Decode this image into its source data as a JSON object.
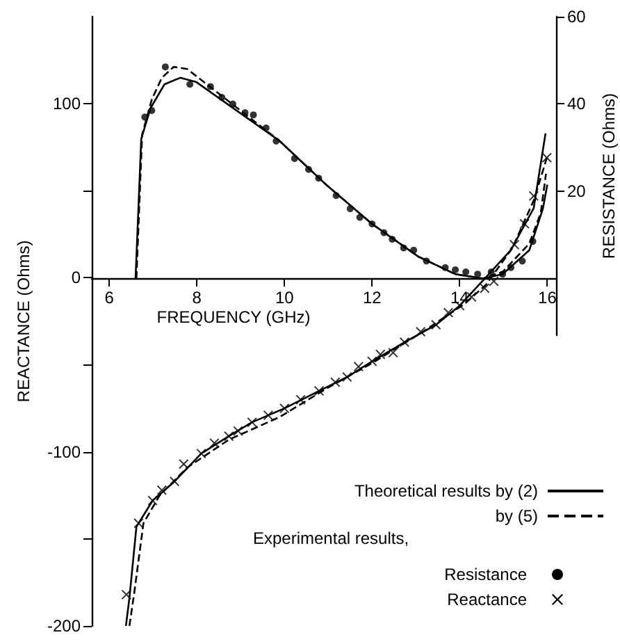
{
  "chart_data": {
    "type": "line",
    "xlabel": "FREQUENCY (GHz)",
    "ylabel": "REACTANCE (Ohms)",
    "y2label": "RESISTANCE (Ohms)",
    "xlim": [
      5.6,
      16.2
    ],
    "xticks": [
      6,
      8,
      10,
      12,
      14,
      16
    ],
    "ylim": [
      -200,
      150
    ],
    "yticks": [
      -200,
      {
        "value": -150,
        "label": null
      },
      -100,
      {
        "value": -50,
        "label": null
      },
      0,
      {
        "value": 50,
        "label": null
      },
      100
    ],
    "y2lim": [
      -13,
      60
    ],
    "y2ticks": [
      20,
      40,
      60
    ],
    "grid": false,
    "legend": "bottom right",
    "annotations": [
      "Experimental results,"
    ],
    "series": [
      {
        "name": "Theoretical results by (2)",
        "axis": "y2",
        "color": "#000000",
        "line_style": "solid",
        "marker": "none",
        "x": [
          6.6,
          6.73,
          6.94,
          7.26,
          7.62,
          7.99,
          9.89,
          10.95,
          12.0,
          13.06,
          13.9,
          14.53,
          14.98,
          15.59,
          15.9,
          16.0
        ],
        "values": [
          0,
          32,
          39,
          44.5,
          46,
          45,
          31.5,
          21.5,
          12.5,
          5,
          1,
          0,
          1,
          6.5,
          16,
          21.5
        ]
      },
      {
        "name": "by (5)",
        "axis": "y2",
        "color": "#000000",
        "line_style": "dashed",
        "marker": "none",
        "x": [
          6.62,
          6.75,
          6.97,
          7.2,
          7.47,
          7.78,
          8.1,
          9.89,
          10.95,
          12.0,
          13.06,
          13.9,
          14.53,
          14.98,
          15.59,
          15.85,
          15.97
        ],
        "values": [
          0,
          33,
          41,
          46,
          48.5,
          48,
          45.5,
          31.5,
          21.5,
          12.5,
          5,
          1,
          0,
          1.5,
          8,
          15,
          24
        ]
      },
      {
        "color": "#000000",
        "line_style": "solid",
        "marker": "none",
        "x": [
          6.38,
          6.46,
          6.62,
          6.99,
          7.49,
          8.1,
          8.73,
          9.26,
          10.0,
          10.79,
          11.43,
          12.0,
          12.74,
          13.46,
          14.0,
          14.59,
          15.17,
          15.69,
          15.96
        ],
        "values": [
          -200,
          -184,
          -143,
          -128,
          -117,
          -101,
          -91,
          -83,
          -75,
          -65,
          -57,
          -48,
          -37,
          -27,
          -16,
          0,
          16,
          40,
          83
        ]
      },
      {
        "color": "#000000",
        "line_style": "dashed",
        "marker": "none",
        "x": [
          6.46,
          6.57,
          6.78,
          7.15,
          7.78,
          8.73,
          9.89,
          11.0,
          12.0,
          13.1,
          14.11,
          14.6,
          15.2,
          15.7,
          15.99
        ],
        "values": [
          -200,
          -181,
          -141,
          -125,
          -109,
          -93,
          -80,
          -63,
          -49,
          -32,
          -15,
          -4,
          17,
          45,
          69
        ]
      },
      {
        "name": "Resistance",
        "type": "scatter",
        "axis": "y2",
        "color": "#000000",
        "marker": "circle",
        "x": [
          6.81,
          6.97,
          7.28,
          7.84,
          8.31,
          8.57,
          8.82,
          9.1,
          9.29,
          9.58,
          9.81,
          10.23,
          10.55,
          10.78,
          11.18,
          11.5,
          11.72,
          12.0,
          12.27,
          12.46,
          12.72,
          12.95,
          13.24,
          13.67,
          13.9,
          14.14,
          14.41,
          14.72,
          14.98,
          15.17,
          15.43,
          15.67
        ],
        "values": [
          37,
          38.5,
          48.5,
          44.5,
          44,
          41.5,
          40,
          38,
          37.5,
          34.5,
          31.5,
          27.5,
          25,
          23,
          19,
          16,
          14,
          12.5,
          10.5,
          9,
          7,
          6.5,
          4,
          2.5,
          2,
          1.5,
          1,
          1.5,
          1,
          2.5,
          4,
          8.5
        ]
      },
      {
        "name": "Reactance",
        "type": "scatter",
        "color": "#000000",
        "marker": "cross",
        "x": [
          6.39,
          6.67,
          6.99,
          7.2,
          7.49,
          7.7,
          8.1,
          8.4,
          8.73,
          8.94,
          9.26,
          9.63,
          10.0,
          10.37,
          10.79,
          11.16,
          11.43,
          11.69,
          12.0,
          12.19,
          12.48,
          12.74,
          13.11,
          13.46,
          13.74,
          14.0,
          14.27,
          14.57,
          14.78,
          15.25,
          15.48,
          15.69,
          15.99
        ],
        "values": [
          -182,
          -141,
          -128,
          -122,
          -117,
          -107,
          -101,
          -95,
          -91,
          -88,
          -83,
          -79,
          -75,
          -70,
          -65,
          -60,
          -57,
          -51,
          -48,
          -44,
          -43,
          -37,
          -31,
          -27,
          -20,
          -16,
          -11,
          -6,
          -2,
          19,
          31,
          47,
          69
        ]
      }
    ]
  }
}
